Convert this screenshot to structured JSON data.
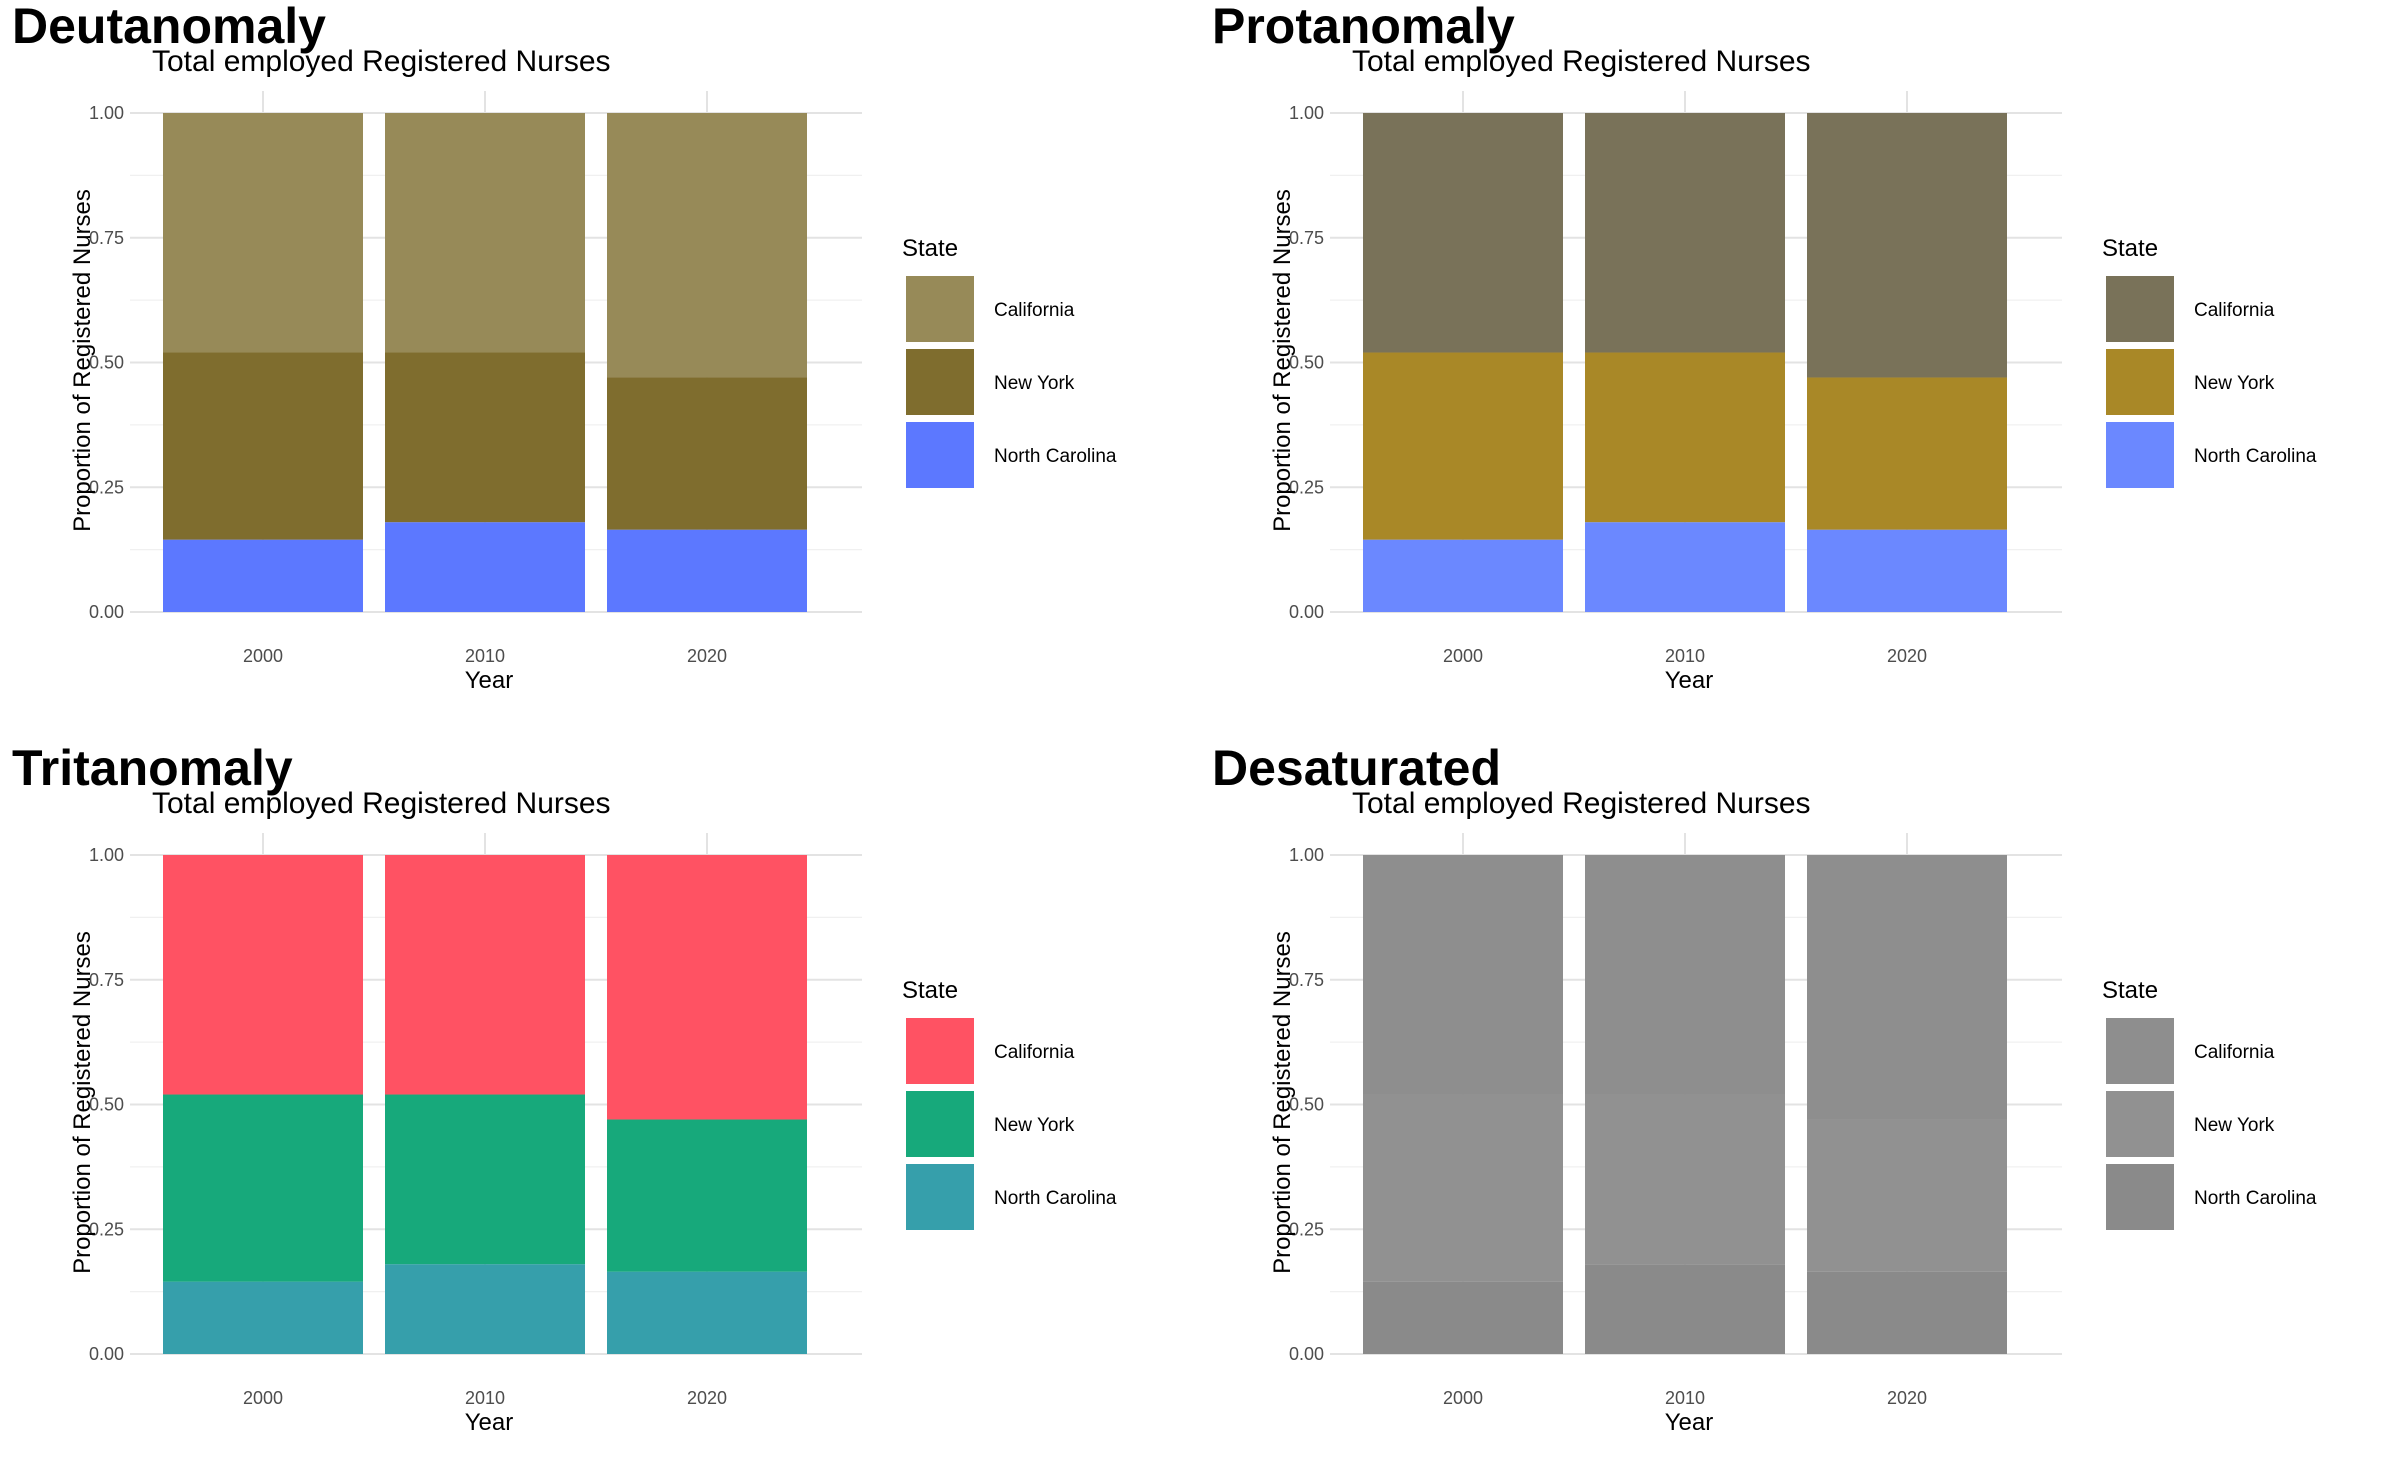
{
  "chart_data": [
    {
      "type": "bar",
      "stacked": "fill",
      "title": "Deutanomaly",
      "subtitle": "Total employed Registered Nurses",
      "xlabel": "Year",
      "ylabel": "Proportion of Registered Nurses",
      "categories": [
        "2000",
        "2010",
        "2020"
      ],
      "ylim": [
        0,
        1
      ],
      "yticks": [
        "0.00",
        "0.25",
        "0.50",
        "0.75",
        "1.00"
      ],
      "legend_title": "State",
      "legend_position": "right",
      "grid": true,
      "series": [
        {
          "name": "California",
          "color": "#978a58",
          "values": [
            0.48,
            0.48,
            0.53
          ]
        },
        {
          "name": "New York",
          "color": "#7f6d2e",
          "values": [
            0.375,
            0.34,
            0.305
          ]
        },
        {
          "name": "North Carolina",
          "color": "#5c78ff",
          "values": [
            0.145,
            0.18,
            0.165
          ]
        }
      ]
    },
    {
      "type": "bar",
      "stacked": "fill",
      "title": "Protanomaly",
      "subtitle": "Total employed Registered Nurses",
      "xlabel": "Year",
      "ylabel": "Proportion of Registered Nurses",
      "categories": [
        "2000",
        "2010",
        "2020"
      ],
      "ylim": [
        0,
        1
      ],
      "yticks": [
        "0.00",
        "0.25",
        "0.50",
        "0.75",
        "1.00"
      ],
      "legend_title": "State",
      "legend_position": "right",
      "grid": true,
      "series": [
        {
          "name": "California",
          "color": "#797259",
          "values": [
            0.48,
            0.48,
            0.53
          ]
        },
        {
          "name": "New York",
          "color": "#a98827",
          "values": [
            0.375,
            0.34,
            0.305
          ]
        },
        {
          "name": "North Carolina",
          "color": "#6b88ff",
          "values": [
            0.145,
            0.18,
            0.165
          ]
        }
      ]
    },
    {
      "type": "bar",
      "stacked": "fill",
      "title": "Tritanomaly",
      "subtitle": "Total employed Registered Nurses",
      "xlabel": "Year",
      "ylabel": "Proportion of Registered Nurses",
      "categories": [
        "2000",
        "2010",
        "2020"
      ],
      "ylim": [
        0,
        1
      ],
      "yticks": [
        "0.00",
        "0.25",
        "0.50",
        "0.75",
        "1.00"
      ],
      "legend_title": "State",
      "legend_position": "right",
      "grid": true,
      "series": [
        {
          "name": "California",
          "color": "#ff5263",
          "values": [
            0.48,
            0.48,
            0.53
          ]
        },
        {
          "name": "New York",
          "color": "#17a97b",
          "values": [
            0.375,
            0.34,
            0.305
          ]
        },
        {
          "name": "North Carolina",
          "color": "#369fab",
          "values": [
            0.145,
            0.18,
            0.165
          ]
        }
      ]
    },
    {
      "type": "bar",
      "stacked": "fill",
      "title": "Desaturated",
      "subtitle": "Total employed Registered Nurses",
      "xlabel": "Year",
      "ylabel": "Proportion of Registered Nurses",
      "categories": [
        "2000",
        "2010",
        "2020"
      ],
      "ylim": [
        0,
        1
      ],
      "yticks": [
        "0.00",
        "0.25",
        "0.50",
        "0.75",
        "1.00"
      ],
      "legend_title": "State",
      "legend_position": "right",
      "grid": true,
      "series": [
        {
          "name": "California",
          "color": "#8e8e8e",
          "values": [
            0.48,
            0.48,
            0.53
          ]
        },
        {
          "name": "New York",
          "color": "#919191",
          "values": [
            0.375,
            0.34,
            0.305
          ]
        },
        {
          "name": "North Carolina",
          "color": "#8a8a8a",
          "values": [
            0.145,
            0.18,
            0.165
          ]
        }
      ]
    }
  ]
}
